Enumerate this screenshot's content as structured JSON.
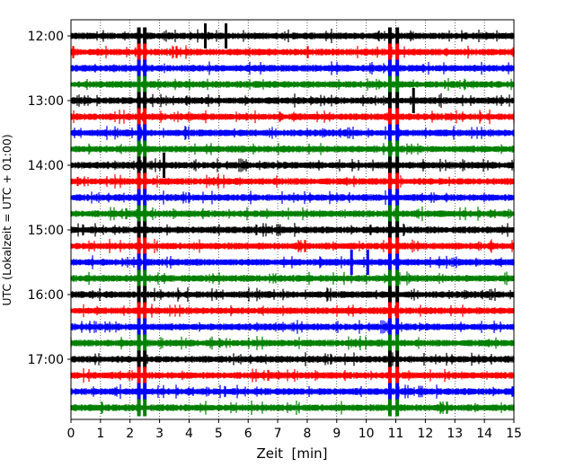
{
  "chart_data": {
    "type": "line",
    "title": "",
    "xlabel": "Zeit  [min]",
    "ylabel": "UTC (Lokalzeit = UTC + 01:00)",
    "xlim": [
      0,
      15
    ],
    "x_ticks": [
      "0",
      "1",
      "2",
      "3",
      "4",
      "5",
      "6",
      "7",
      "8",
      "9",
      "10",
      "11",
      "12",
      "13",
      "14",
      "15"
    ],
    "y_ticks": [
      "12:00",
      "13:00",
      "14:00",
      "15:00",
      "16:00",
      "17:00"
    ],
    "trace_interval_min": 15,
    "trace_start": "12:00",
    "trace_count": 24,
    "trace_colors": [
      "#000000",
      "#ff0000",
      "#0000ff",
      "#008000"
    ],
    "grid": "vertical dotted",
    "events": [
      {
        "time_min": 2.3,
        "strength": "strong",
        "traces": "all"
      },
      {
        "time_min": 2.5,
        "strength": "strong",
        "traces": "all"
      },
      {
        "time_min": 10.8,
        "strength": "strong",
        "traces": "all"
      },
      {
        "time_min": 11.05,
        "strength": "strong",
        "traces": "all"
      },
      {
        "time_min": 4.55,
        "strength": "medium",
        "trace_time": "12:00"
      },
      {
        "time_min": 5.25,
        "strength": "medium",
        "trace_time": "12:00"
      },
      {
        "time_min": 11.6,
        "strength": "medium",
        "trace_time": "13:00"
      },
      {
        "time_min": 3.15,
        "strength": "medium",
        "trace_time": "14:00"
      },
      {
        "time_min": 9.5,
        "strength": "medium",
        "trace_time": "15:30"
      },
      {
        "time_min": 10.05,
        "strength": "medium",
        "trace_time": "15:30"
      }
    ]
  }
}
